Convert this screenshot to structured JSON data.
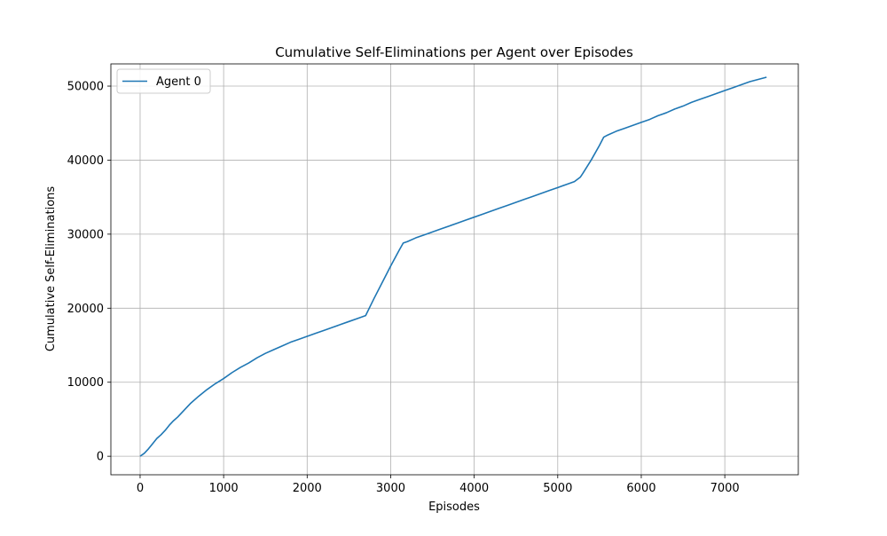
{
  "chart_data": {
    "type": "line",
    "title": "Cumulative Self-Eliminations per Agent over Episodes",
    "xlabel": "Episodes",
    "ylabel": "Cumulative Self-Eliminations",
    "xlim": [
      -350,
      7880
    ],
    "ylim": [
      -2500,
      53000
    ],
    "x_ticks": [
      0,
      1000,
      2000,
      3000,
      4000,
      5000,
      6000,
      7000
    ],
    "y_ticks": [
      0,
      10000,
      20000,
      30000,
      40000,
      50000
    ],
    "grid": true,
    "legend_position": "top-left",
    "series": [
      {
        "name": "Agent 0",
        "color": "#1f77b4",
        "x": [
          0,
          50,
          100,
          150,
          200,
          250,
          300,
          350,
          400,
          450,
          500,
          600,
          700,
          800,
          900,
          1000,
          1100,
          1200,
          1300,
          1400,
          1500,
          1600,
          1700,
          1800,
          1900,
          2000,
          2100,
          2200,
          2300,
          2400,
          2500,
          2600,
          2700,
          2800,
          2900,
          3000,
          3100,
          3150,
          3200,
          3300,
          3400,
          3500,
          3600,
          3700,
          3800,
          3900,
          4000,
          4100,
          4200,
          4300,
          4400,
          4500,
          4600,
          4700,
          4800,
          4900,
          5000,
          5100,
          5200,
          5270,
          5300,
          5400,
          5500,
          5550,
          5600,
          5700,
          5800,
          5900,
          6000,
          6100,
          6200,
          6300,
          6400,
          6500,
          6600,
          6700,
          6800,
          6900,
          7000,
          7100,
          7200,
          7300,
          7400,
          7500
        ],
        "values": [
          0,
          400,
          1000,
          1700,
          2400,
          2900,
          3500,
          4200,
          4800,
          5300,
          5900,
          7100,
          8100,
          9000,
          9800,
          10500,
          11300,
          12000,
          12600,
          13300,
          13900,
          14400,
          14900,
          15400,
          15800,
          16200,
          16600,
          17000,
          17400,
          17800,
          18200,
          18600,
          19000,
          21300,
          23500,
          25700,
          27800,
          28800,
          29000,
          29500,
          29900,
          30300,
          30700,
          31100,
          31500,
          31900,
          32300,
          32700,
          33100,
          33500,
          33900,
          34300,
          34700,
          35100,
          35500,
          35900,
          36300,
          36700,
          37100,
          37700,
          38200,
          40000,
          42000,
          43100,
          43400,
          43900,
          44300,
          44700,
          45100,
          45500,
          46000,
          46400,
          46900,
          47300,
          47800,
          48200,
          48600,
          49000,
          49400,
          49800,
          50200,
          50600,
          50900,
          51200
        ]
      }
    ]
  }
}
